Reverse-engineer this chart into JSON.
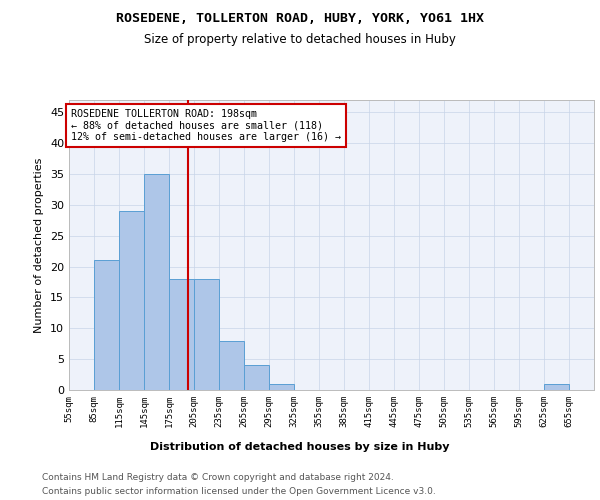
{
  "title": "ROSEDENE, TOLLERTON ROAD, HUBY, YORK, YO61 1HX",
  "subtitle": "Size of property relative to detached houses in Huby",
  "xlabel": "Distribution of detached houses by size in Huby",
  "ylabel": "Number of detached properties",
  "bin_labels": [
    "55sqm",
    "85sqm",
    "115sqm",
    "145sqm",
    "175sqm",
    "205sqm",
    "235sqm",
    "265sqm",
    "295sqm",
    "325sqm",
    "355sqm",
    "385sqm",
    "415sqm",
    "445sqm",
    "475sqm",
    "505sqm",
    "535sqm",
    "565sqm",
    "595sqm",
    "625sqm",
    "655sqm"
  ],
  "bin_left_edges": [
    55,
    85,
    115,
    145,
    175,
    205,
    235,
    265,
    295,
    325,
    355,
    385,
    415,
    445,
    475,
    505,
    535,
    565,
    595,
    625,
    655
  ],
  "bar_heights": [
    0,
    21,
    29,
    35,
    18,
    18,
    8,
    4,
    1,
    0,
    0,
    0,
    0,
    0,
    0,
    0,
    0,
    0,
    0,
    1,
    0
  ],
  "bar_color": "#aec6e8",
  "bar_edge_color": "#5a9fd4",
  "reference_line_x": 198,
  "reference_line_color": "#cc0000",
  "annotation_text": "ROSEDENE TOLLERTON ROAD: 198sqm\n← 88% of detached houses are smaller (118)\n12% of semi-detached houses are larger (16) →",
  "annotation_box_color": "white",
  "annotation_box_edge_color": "#cc0000",
  "ylim": [
    0,
    47
  ],
  "yticks": [
    0,
    5,
    10,
    15,
    20,
    25,
    30,
    35,
    40,
    45
  ],
  "xlim_left": 55,
  "xlim_right": 685,
  "bin_width": 30,
  "background_color": "#eef2fa",
  "footer_line1": "Contains HM Land Registry data © Crown copyright and database right 2024.",
  "footer_line2": "Contains public sector information licensed under the Open Government Licence v3.0."
}
